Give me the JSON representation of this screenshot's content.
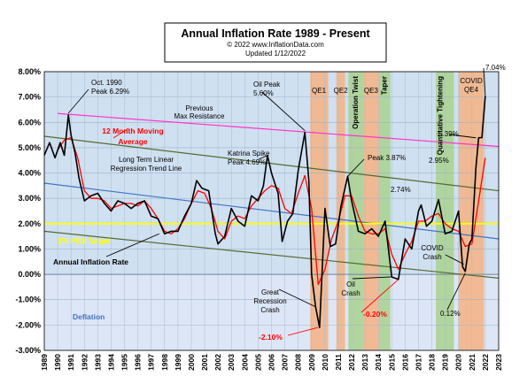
{
  "header": {
    "title": "Annual  Inflation Rate 1989 - Present",
    "copyright": "© 2022  www.InflationData.com",
    "updated": "Updated   1/12/2022"
  },
  "colors": {
    "background": "#cfe0f1",
    "deflation_bg": "#dde6f6",
    "annual_line": "#000000",
    "moving_avg": "#ff0000",
    "linear_trend": "#4472c4",
    "max_resistance": "#ff33cc",
    "channel": "#556b2f",
    "fed_target": "#ffff00",
    "qe_band": "#f4b183",
    "twist_band": "#a9d18e"
  },
  "chart_data": {
    "type": "line",
    "title": "Annual  Inflation Rate 1989 - Present",
    "xlim": [
      1989,
      2023
    ],
    "ylim": [
      -3,
      8
    ],
    "y_ticks": [
      "-3.00%",
      "-2.00%",
      "-1.00%",
      "0.00%",
      "1.00%",
      "2.00%",
      "3.00%",
      "4.00%",
      "5.00%",
      "6.00%",
      "7.00%",
      "8.00%"
    ],
    "x_ticks": [
      "1989",
      "1990",
      "1991",
      "1992",
      "1993",
      "1994",
      "1995",
      "1996",
      "1997",
      "1998",
      "1999",
      "2000",
      "2001",
      "2002",
      "2003",
      "2004",
      "2005",
      "2006",
      "2007",
      "2008",
      "2009",
      "2010",
      "2011",
      "2012",
      "2013",
      "2014",
      "2015",
      "2016",
      "2017",
      "2018",
      "2019",
      "2020",
      "2021",
      "2022",
      "2023"
    ],
    "grid": true,
    "series": [
      {
        "name": "Annual Inflation Rate",
        "color": "#000000",
        "x": [
          1989.0,
          1989.4,
          1989.8,
          1990.2,
          1990.5,
          1990.8,
          1991.0,
          1991.3,
          1991.6,
          1992.0,
          1992.5,
          1993.0,
          1993.5,
          1994.0,
          1994.5,
          1995.0,
          1995.5,
          1996.0,
          1996.5,
          1997.0,
          1997.5,
          1998.0,
          1998.5,
          1999.0,
          1999.5,
          2000.0,
          2000.4,
          2000.8,
          2001.3,
          2001.8,
          2002.0,
          2002.5,
          2003.0,
          2003.5,
          2004.0,
          2004.5,
          2005.0,
          2005.4,
          2005.7,
          2006.0,
          2006.5,
          2006.8,
          2007.2,
          2007.6,
          2008.0,
          2008.5,
          2008.8,
          2009.0,
          2009.3,
          2009.6,
          2010.0,
          2010.4,
          2010.8,
          2011.2,
          2011.7,
          2012.0,
          2012.5,
          2013.0,
          2013.5,
          2014.0,
          2014.5,
          2015.0,
          2015.5,
          2016.0,
          2016.5,
          2017.0,
          2017.2,
          2017.6,
          2018.0,
          2018.5,
          2019.0,
          2019.5,
          2020.0,
          2020.3,
          2020.5,
          2020.8,
          2021.0,
          2021.3,
          2021.5,
          2021.75,
          2022.0
        ],
        "values": [
          4.7,
          5.2,
          4.6,
          5.2,
          4.7,
          6.29,
          5.5,
          4.8,
          3.8,
          2.9,
          3.1,
          3.2,
          2.8,
          2.5,
          2.9,
          2.8,
          2.6,
          2.8,
          2.9,
          2.3,
          2.2,
          1.6,
          1.7,
          1.7,
          2.3,
          2.8,
          3.7,
          3.4,
          3.3,
          1.6,
          1.2,
          1.5,
          2.6,
          2.1,
          1.9,
          3.1,
          2.9,
          3.5,
          4.69,
          4.0,
          3.2,
          1.3,
          2.1,
          2.4,
          4.1,
          5.6,
          3.7,
          0.0,
          -1.28,
          -2.1,
          2.6,
          1.1,
          1.2,
          2.7,
          3.87,
          2.9,
          1.7,
          1.6,
          1.8,
          1.5,
          2.1,
          -0.1,
          -0.2,
          1.4,
          1.0,
          2.5,
          2.74,
          1.9,
          2.1,
          2.95,
          1.6,
          1.7,
          2.5,
          0.3,
          0.12,
          1.2,
          1.4,
          4.2,
          5.39,
          5.4,
          7.04
        ]
      },
      {
        "name": "12 Month Moving Average",
        "color": "#ff0000",
        "x": [
          1990.0,
          1990.5,
          1991.0,
          1991.5,
          1992.0,
          1992.5,
          1993.0,
          1993.5,
          1994.0,
          1994.5,
          1995.0,
          1995.5,
          1996.0,
          1996.5,
          1997.0,
          1997.5,
          1998.0,
          1998.5,
          1999.0,
          1999.5,
          2000.0,
          2000.5,
          2001.0,
          2001.5,
          2002.0,
          2002.5,
          2003.0,
          2003.5,
          2004.0,
          2004.5,
          2005.0,
          2005.5,
          2006.0,
          2006.5,
          2007.0,
          2007.5,
          2008.0,
          2008.5,
          2009.0,
          2009.5,
          2010.0,
          2010.5,
          2011.0,
          2011.5,
          2012.0,
          2012.5,
          2013.0,
          2013.5,
          2014.0,
          2014.5,
          2015.0,
          2015.5,
          2016.0,
          2016.5,
          2017.0,
          2017.5,
          2018.0,
          2018.5,
          2019.0,
          2019.5,
          2020.0,
          2020.5,
          2021.0,
          2021.5,
          2022.0
        ],
        "values": [
          4.9,
          5.3,
          5.4,
          4.6,
          3.3,
          3.0,
          3.0,
          2.9,
          2.6,
          2.7,
          2.8,
          2.8,
          2.7,
          2.9,
          2.6,
          2.2,
          1.7,
          1.6,
          1.8,
          2.2,
          2.8,
          3.3,
          3.2,
          2.6,
          1.7,
          1.4,
          2.1,
          2.3,
          2.2,
          2.7,
          3.0,
          3.3,
          3.5,
          3.4,
          2.6,
          2.4,
          3.2,
          3.9,
          2.6,
          -0.4,
          0.2,
          1.4,
          2.1,
          3.1,
          3.1,
          2.3,
          1.7,
          1.6,
          1.6,
          1.8,
          0.8,
          0.2,
          0.8,
          1.3,
          2.1,
          2.1,
          2.3,
          2.4,
          2.0,
          1.8,
          1.7,
          1.1,
          1.2,
          2.9,
          4.6
        ]
      }
    ],
    "trend_lines": [
      {
        "name": "Previous Max Resistance",
        "x": [
          1990.0,
          2023.0
        ],
        "y": [
          6.35,
          5.05
        ],
        "color": "#ff33cc"
      },
      {
        "name": "Long Term Linear Regression Trend Line",
        "x": [
          1989.0,
          2023.0
        ],
        "y": [
          3.6,
          1.4
        ],
        "color": "#4472c4"
      },
      {
        "name": "channel-upper",
        "x": [
          1989.0,
          2023.0
        ],
        "y": [
          5.45,
          3.3
        ],
        "color": "#556b2f"
      },
      {
        "name": "channel-lower",
        "x": [
          1989.0,
          2023.0
        ],
        "y": [
          1.7,
          -0.15
        ],
        "color": "#556b2f"
      },
      {
        "name": "2% FED Target",
        "x": [
          1989.0,
          2023.0
        ],
        "y": [
          2.0,
          2.0
        ],
        "color": "#ffff00"
      }
    ],
    "bands": [
      {
        "label": "QE1",
        "x0": 2008.9,
        "x1": 2010.25,
        "color": "#f4b183"
      },
      {
        "label": "QE2",
        "x0": 2010.85,
        "x1": 2011.5,
        "color": "#f4b183"
      },
      {
        "label": "Operation Twist",
        "x0": 2011.75,
        "x1": 2012.9,
        "color": "#a9d18e"
      },
      {
        "label": "QE3",
        "x0": 2012.9,
        "x1": 2014.05,
        "color": "#f4b183"
      },
      {
        "label": "Taper",
        "x0": 2014.05,
        "x1": 2014.9,
        "color": "#a9d18e"
      },
      {
        "label": "Quantitative Tightening",
        "x0": 2018.3,
        "x1": 2019.65,
        "color": "#a9d18e"
      },
      {
        "label": "COVID QE4",
        "x0": 2020.0,
        "x1": 2021.9,
        "color": "#f4b183"
      }
    ],
    "annotations": {
      "oct1990": [
        "Oct. 1990",
        "Peak 6.29%"
      ],
      "moving_avg": [
        "12 Month Moving",
        "Average"
      ],
      "prev_max": [
        "Previous",
        "Max Resistance"
      ],
      "linear_trend": [
        "Long Term Linear",
        "Regression Trend Line"
      ],
      "katrina": [
        "Katrina Spike",
        "Peak 4.69%"
      ],
      "oil_peak": [
        "Oil Peak",
        "5.60%"
      ],
      "peak_387": "Peak 3.87%",
      "val_274": "2.74%",
      "val_295": "2.95%",
      "val_539": "5.39%",
      "val_704": "7.04%",
      "fed_target": "2% FED Target",
      "annual_rate": "Annual Inflation Rate",
      "deflation": "Deflation",
      "great_recession": [
        "Great",
        "Recession",
        "Crash"
      ],
      "val_neg210": "-2.10%",
      "oil_crash": [
        "Oil",
        "Crash"
      ],
      "val_neg020": "-0.20%",
      "covid_crash": [
        "COVID",
        "Crash"
      ],
      "val_012": "0.12%"
    }
  }
}
